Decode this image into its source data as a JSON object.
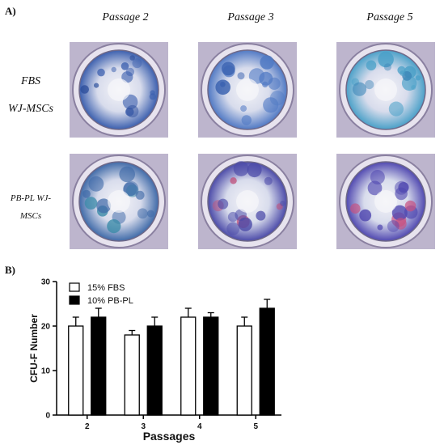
{
  "panel_a": {
    "label": "A)",
    "columns": [
      "Passage 2",
      "Passage 3",
      "Passage 5"
    ],
    "rows": [
      {
        "line1": "FBS",
        "line2": "WJ-MSCs"
      },
      {
        "line1": "PB-PL WJ-",
        "line2": "MSCs"
      }
    ],
    "wells": [
      {
        "name": "fbs-passage-2",
        "tint": "#3b5fae",
        "accent": "#2a4c9a"
      },
      {
        "name": "fbs-passage-3",
        "tint": "#5079c4",
        "accent": "#3a62b0"
      },
      {
        "name": "fbs-passage-5",
        "tint": "#4aa0c8",
        "accent": "#3c86b8"
      },
      {
        "name": "pbpl-passage-2",
        "tint": "#3f6aa8",
        "accent": "#3a8aa8"
      },
      {
        "name": "pbpl-passage-3",
        "tint": "#4b4aa8",
        "accent": "#c0507a"
      },
      {
        "name": "pbpl-passage-5",
        "tint": "#5048b0",
        "accent": "#c85080"
      }
    ]
  },
  "panel_b": {
    "label": "B)"
  },
  "chart_data": {
    "type": "bar",
    "categories": [
      "2",
      "3",
      "4",
      "5"
    ],
    "series": [
      {
        "name": "15% FBS",
        "values": [
          20,
          18,
          22,
          20
        ],
        "errors": [
          2,
          1,
          2,
          2
        ],
        "color": "#ffffff"
      },
      {
        "name": "10% PB-PL",
        "values": [
          22,
          20,
          22,
          24
        ],
        "errors": [
          2,
          2,
          1,
          2
        ],
        "color": "#000000"
      }
    ],
    "xlabel": "Passages",
    "ylabel": "CFU-F Number",
    "ylim": [
      0,
      30
    ],
    "yticks": [
      0,
      10,
      20,
      30
    ],
    "legend_position": "top-left",
    "grid": false
  }
}
